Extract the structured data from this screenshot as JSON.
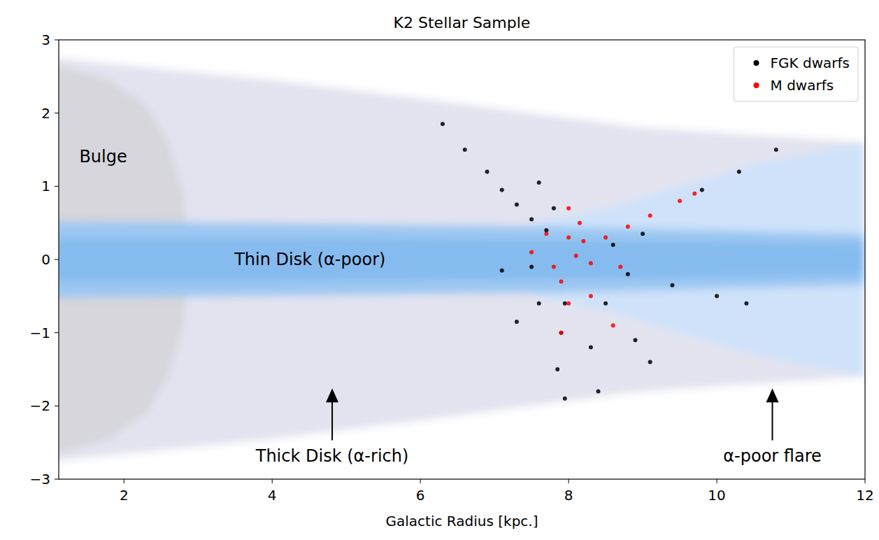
{
  "chart_data": {
    "type": "scatter",
    "title": "K2 Stellar Sample",
    "x_label": "Galactic Radius [kpc.]",
    "xlim": [
      1.12,
      12
    ],
    "xticks": [
      2,
      4,
      6,
      8,
      10,
      12
    ],
    "ylim": [
      -3,
      3
    ],
    "yticks": [
      -3,
      -2,
      -1,
      0,
      1,
      2,
      3
    ],
    "legend": "upper right",
    "grid": false,
    "regions": [
      {
        "color": "#e3e3f0",
        "x": [
          1.12,
          4,
          6,
          7.5,
          9,
          10.5,
          12
        ],
        "upper": [
          2.75,
          2.45,
          2.2,
          2.0,
          1.8,
          1.7,
          1.6
        ],
        "lower": [
          -2.75,
          -2.45,
          -2.2,
          -2.0,
          -1.8,
          -1.7,
          -1.6
        ]
      },
      {
        "color": "#cfe2fa",
        "x": [
          7.5,
          8.5,
          9.5,
          10.5,
          12
        ],
        "upper": [
          0.5,
          0.7,
          1.0,
          1.3,
          1.6
        ],
        "lower": [
          -0.5,
          -0.7,
          -1.0,
          -1.3,
          -1.6
        ]
      },
      {
        "color": "#d6d6dc",
        "x": [
          1.12,
          1.8,
          2.3,
          2.6,
          2.8,
          2.9
        ],
        "upper": [
          2.65,
          2.45,
          2.1,
          1.6,
          0.9,
          0
        ],
        "lower": [
          -2.65,
          -2.45,
          -2.1,
          -1.6,
          -0.9,
          0
        ]
      },
      {
        "color": "#9cc8f2",
        "x": [
          1.12,
          4,
          8,
          12
        ],
        "upper": [
          0.52,
          0.5,
          0.45,
          0.35
        ],
        "lower": [
          -0.52,
          -0.5,
          -0.45,
          -0.35
        ]
      },
      {
        "color": "#86bbef",
        "x": [
          1.12,
          4,
          8,
          12
        ],
        "upper": [
          0.3,
          0.3,
          0.27,
          0.22
        ],
        "lower": [
          -0.3,
          -0.3,
          -0.27,
          -0.22
        ]
      }
    ],
    "annotations": [
      {
        "text": "Bulge",
        "x": 1.72,
        "y": 1.4
      },
      {
        "text": "Thin Disk (α-poor)",
        "x": 4.51,
        "y": 0
      },
      {
        "text": "Thick Disk (α-rich)",
        "x": 4.81,
        "y": -2.68,
        "arrow": [
          4.81,
          -1.76
        ]
      },
      {
        "text": "α-poor flare",
        "x": 10.75,
        "y": -2.68,
        "arrow": [
          10.75,
          -1.76
        ]
      }
    ],
    "series": [
      {
        "name": "FGK dwarfs",
        "color": "#000000",
        "marker": "circle",
        "x": [
          6.3,
          6.6,
          6.9,
          7.1,
          7.3,
          7.5,
          7.7,
          7.6,
          7.8,
          7.95,
          7.9,
          7.85,
          7.95,
          7.5,
          7.1,
          8.5,
          8.9,
          9.1,
          8.8,
          9.4,
          10.0,
          10.4,
          8.6,
          9.0,
          9.8,
          10.3,
          10.8,
          8.3,
          8.4,
          7.3,
          7.6
        ],
        "values": [
          1.85,
          1.5,
          1.2,
          0.95,
          0.75,
          0.55,
          0.4,
          1.05,
          0.7,
          -0.6,
          -1.0,
          -1.5,
          -1.9,
          -0.1,
          -0.15,
          -0.6,
          -1.1,
          -1.4,
          -0.2,
          -0.35,
          -0.5,
          -0.6,
          0.2,
          0.35,
          0.95,
          1.2,
          1.5,
          -1.2,
          -1.8,
          -0.85,
          -0.6
        ]
      },
      {
        "name": "M dwarfs",
        "color": "#ff0000",
        "marker": "circle",
        "x": [
          8.1,
          8.0,
          8.15,
          8.2,
          8.5,
          8.8,
          9.1,
          9.5,
          9.7,
          7.7,
          7.5,
          7.9,
          8.0,
          8.3,
          8.6,
          8.3,
          8.7,
          7.8,
          8.0,
          7.9
        ],
        "values": [
          0.05,
          0.3,
          0.5,
          0.25,
          0.3,
          0.45,
          0.6,
          0.8,
          0.9,
          0.35,
          0.1,
          -0.3,
          -0.6,
          -0.5,
          -0.9,
          -0.05,
          -0.1,
          -0.1,
          0.7,
          -1.0
        ]
      }
    ]
  }
}
